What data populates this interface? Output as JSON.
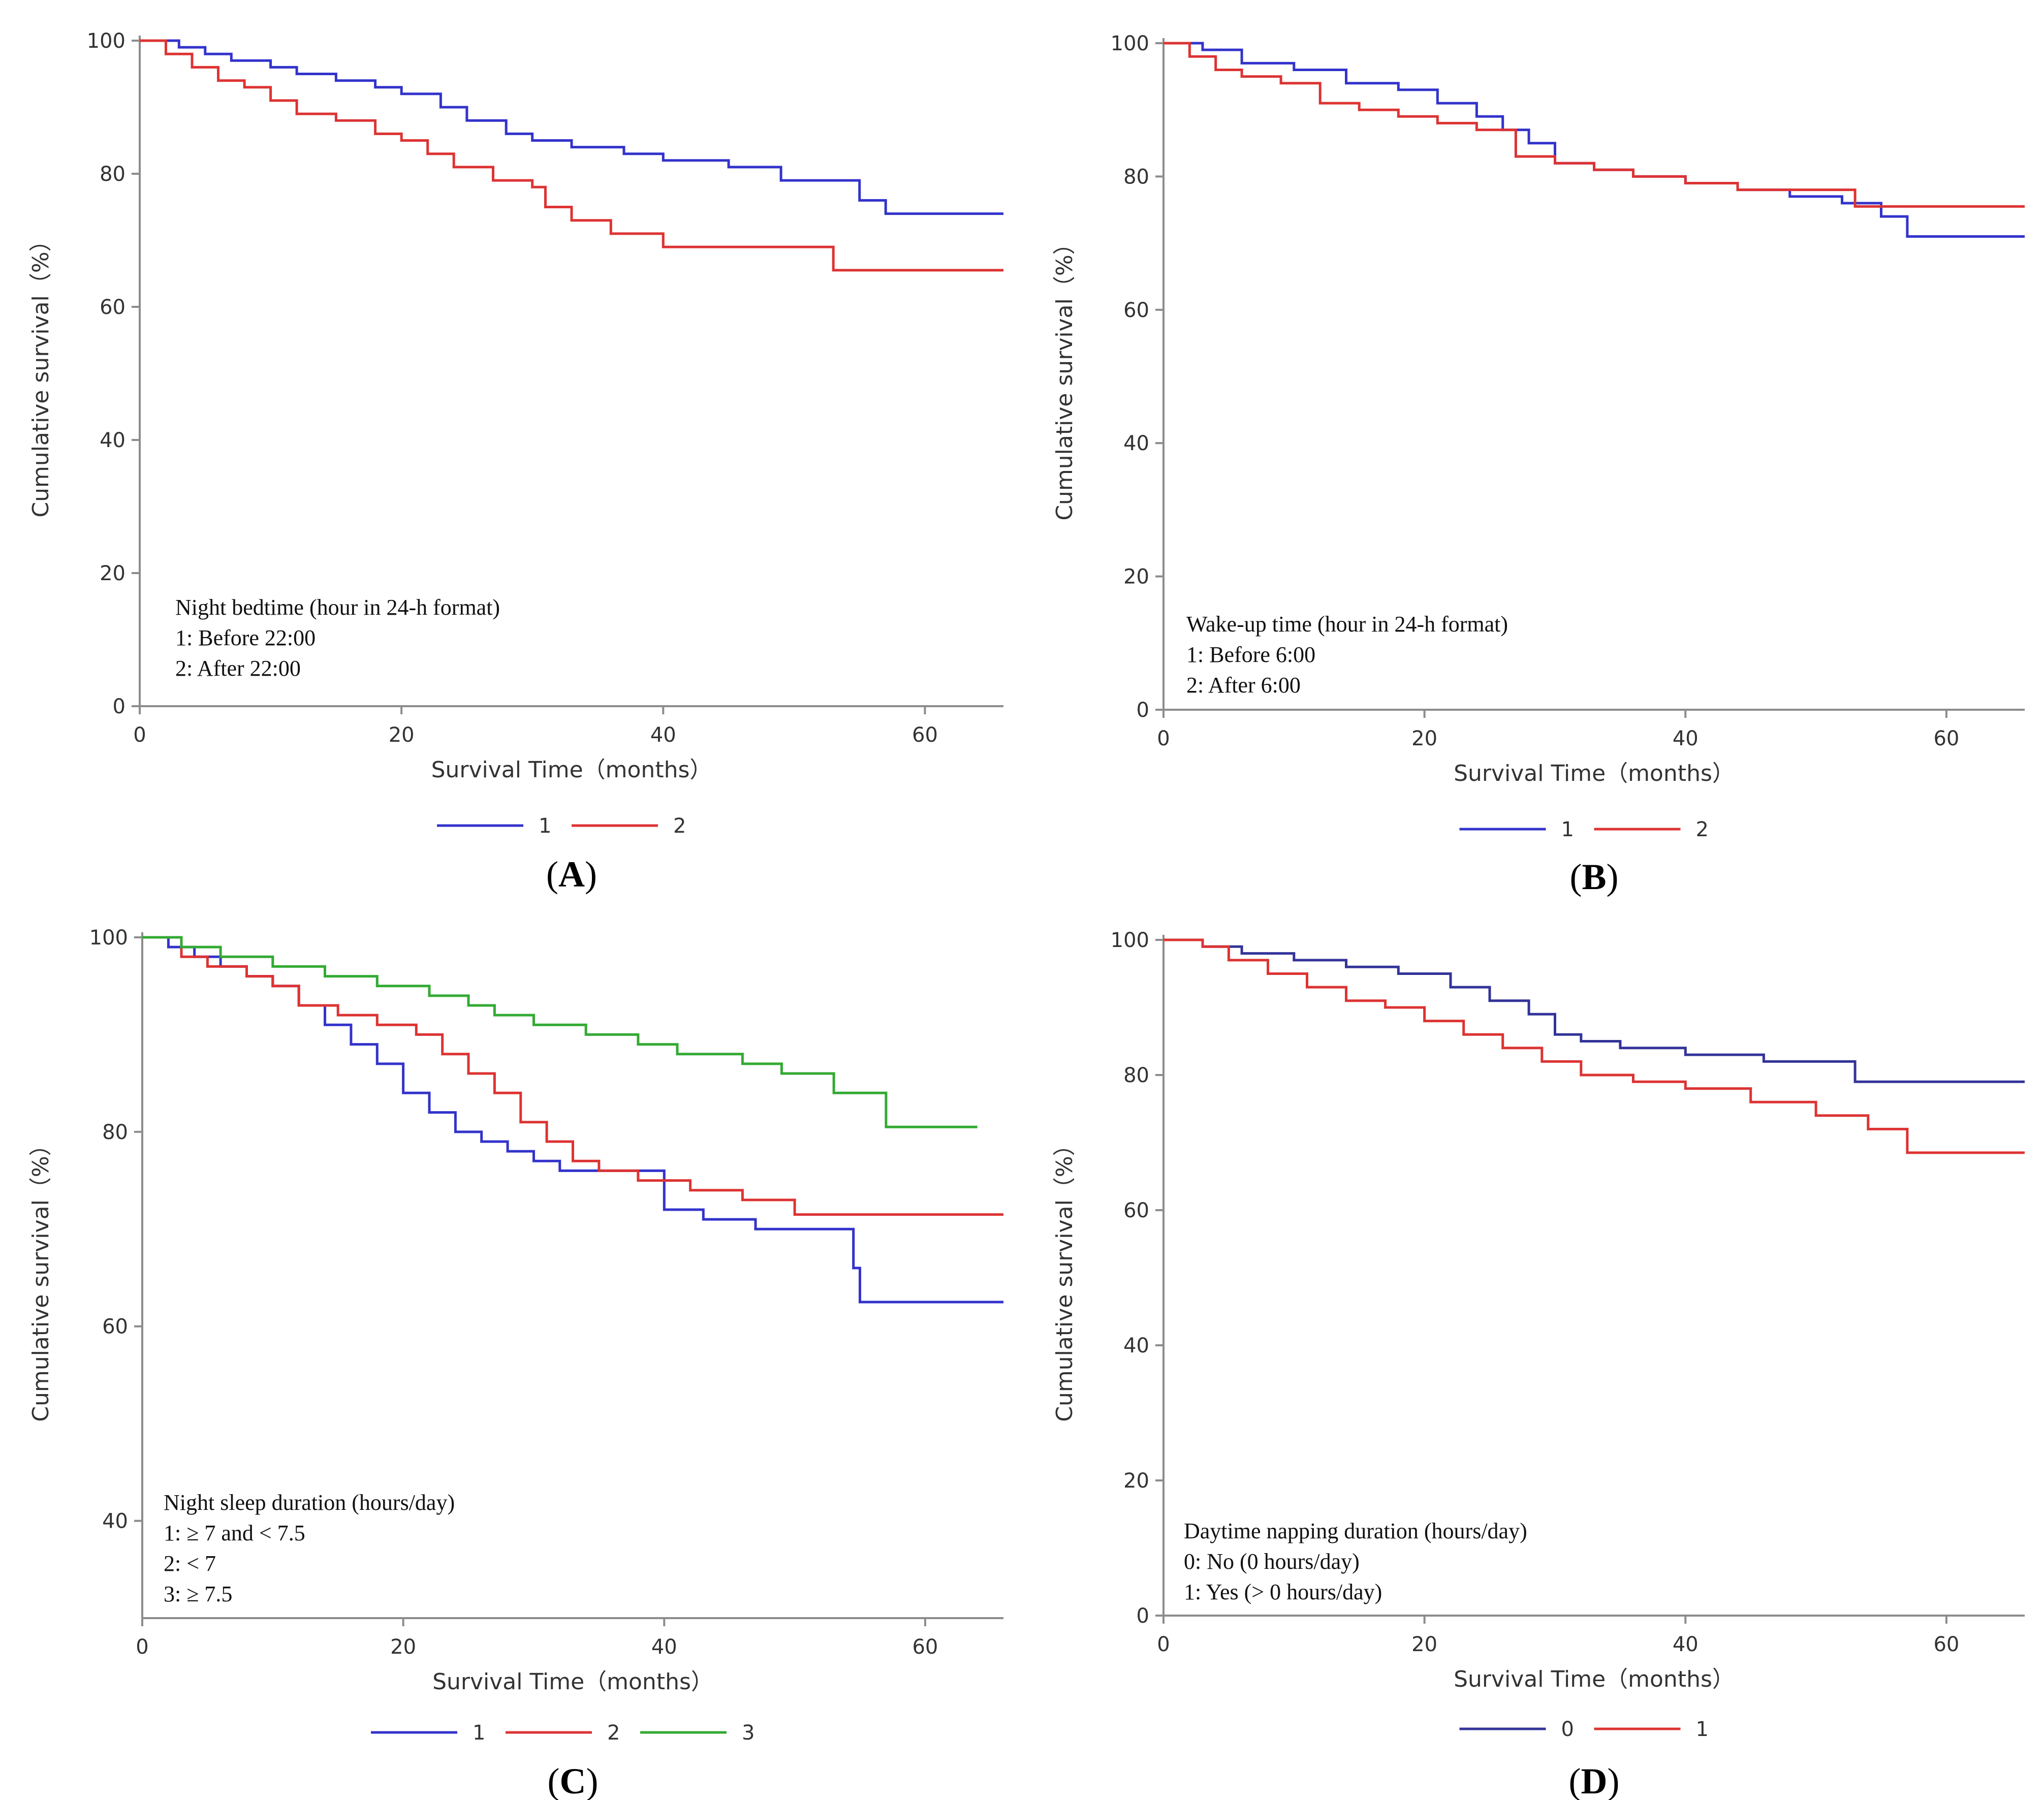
{
  "chart_data": [
    {
      "type": "line",
      "panel_label": "A",
      "xlabel": "Survival Time（months）",
      "ylabel": "Cumulative survival（%）",
      "xlim": [
        0,
        66
      ],
      "ylim": [
        0,
        100
      ],
      "xticks": [
        0,
        20,
        40,
        60
      ],
      "yticks": [
        0,
        20,
        40,
        60,
        80,
        100
      ],
      "annotation": {
        "title": "Night bedtime (hour in 24-h format)",
        "lines": [
          "1: Before 22:00",
          "2: After 22:00"
        ]
      },
      "series": [
        {
          "name": "1",
          "color": "#3333cc",
          "x": [
            0,
            3,
            5,
            7,
            10,
            12,
            15,
            18,
            20,
            23,
            25,
            28,
            30,
            33,
            37,
            40,
            45,
            49,
            55,
            57,
            66
          ],
          "y": [
            100,
            99,
            98,
            97,
            96,
            95,
            94,
            93,
            92,
            90,
            88,
            86,
            85,
            84,
            83,
            82,
            81,
            79,
            76,
            74,
            74
          ]
        },
        {
          "name": "2",
          "color": "#dd3333",
          "x": [
            0,
            2,
            4,
            6,
            8,
            10,
            12,
            15,
            18,
            20,
            22,
            24,
            27,
            30,
            31,
            33,
            36,
            40,
            45,
            50,
            53,
            66
          ],
          "y": [
            100,
            98,
            96,
            94,
            93,
            91,
            89,
            88,
            86,
            85,
            83,
            81,
            79,
            78,
            75,
            73,
            71,
            69,
            69,
            69,
            65.5,
            65.5
          ]
        }
      ]
    },
    {
      "type": "line",
      "panel_label": "B",
      "xlabel": "Survival Time（months）",
      "ylabel": "Cumulative survival（%）",
      "xlim": [
        0,
        66
      ],
      "ylim": [
        0,
        100
      ],
      "xticks": [
        0,
        20,
        40,
        60
      ],
      "yticks": [
        0,
        20,
        40,
        60,
        80,
        100
      ],
      "annotation": {
        "title": "Wake-up time (hour in 24-h format)",
        "lines": [
          "1: Before 6:00",
          "2: After 6:00"
        ]
      },
      "series": [
        {
          "name": "1",
          "color": "#3333cc",
          "x": [
            0,
            3,
            6,
            10,
            14,
            18,
            21,
            24,
            26,
            28,
            30,
            33,
            36,
            40,
            44,
            48,
            52,
            55,
            57,
            66
          ],
          "y": [
            100,
            99,
            97,
            96,
            94,
            93,
            91,
            89,
            87,
            85,
            82,
            81,
            80,
            79,
            78,
            77,
            76,
            74,
            71,
            71
          ]
        },
        {
          "name": "2",
          "color": "#dd3333",
          "x": [
            0,
            2,
            4,
            6,
            9,
            12,
            15,
            18,
            21,
            24,
            27,
            30,
            33,
            36,
            40,
            44,
            48,
            53,
            66
          ],
          "y": [
            100,
            98,
            96,
            95,
            94,
            91,
            90,
            89,
            88,
            87,
            83,
            82,
            81,
            80,
            79,
            78,
            78,
            75.5,
            75.5
          ]
        }
      ]
    },
    {
      "type": "line",
      "panel_label": "C",
      "xlabel": "Survival Time（months）",
      "ylabel": "Cumulative survival（%）",
      "xlim": [
        0,
        66
      ],
      "ylim": [
        30,
        100
      ],
      "xticks": [
        0,
        20,
        40,
        60
      ],
      "yticks": [
        40,
        60,
        80,
        100
      ],
      "annotation": {
        "title": "Night sleep duration (hours/day)",
        "lines": [
          "1: ≥ 7 and < 7.5",
          "2: < 7",
          "3: ≥ 7.5"
        ]
      },
      "series": [
        {
          "name": "1",
          "color": "#3333cc",
          "x": [
            0,
            2,
            4,
            6,
            8,
            10,
            12,
            14,
            16,
            18,
            20,
            22,
            24,
            26,
            28,
            30,
            32,
            36,
            40,
            43,
            47,
            50,
            54.5,
            55,
            66
          ],
          "y": [
            100,
            99,
            98,
            97,
            96,
            95,
            93,
            91,
            89,
            87,
            84,
            82,
            80,
            79,
            78,
            77,
            76,
            76,
            72,
            71,
            70,
            70,
            66,
            62.5,
            62.5
          ]
        },
        {
          "name": "2",
          "color": "#dd3333",
          "x": [
            0,
            3,
            5,
            8,
            10,
            12,
            15,
            18,
            21,
            23,
            25,
            27,
            29,
            31,
            33,
            35,
            38,
            42,
            46,
            50,
            66
          ],
          "y": [
            100,
            98,
            97,
            96,
            95,
            93,
            92,
            91,
            90,
            88,
            86,
            84,
            81,
            79,
            77,
            76,
            75,
            74,
            73,
            71.5,
            71.5
          ]
        },
        {
          "name": "3",
          "color": "#33aa33",
          "x": [
            0,
            3,
            6,
            10,
            14,
            18,
            22,
            25,
            27,
            30,
            34,
            38,
            41,
            46,
            49,
            53,
            57,
            64
          ],
          "y": [
            100,
            99,
            98,
            97,
            96,
            95,
            94,
            93,
            92,
            91,
            90,
            89,
            88,
            87,
            86,
            84,
            80.5,
            80.5
          ]
        }
      ]
    },
    {
      "type": "line",
      "panel_label": "D",
      "xlabel": "Survival Time（months）",
      "ylabel": "Cumulative survival（%）",
      "xlim": [
        0,
        66
      ],
      "ylim": [
        0,
        100
      ],
      "xticks": [
        0,
        20,
        40,
        60
      ],
      "yticks": [
        0,
        20,
        40,
        60,
        80,
        100
      ],
      "annotation": {
        "title": "Daytime napping duration (hours/day)",
        "lines": [
          "0: No (0 hours/day)",
          "1: Yes (> 0 hours/day)"
        ]
      },
      "series": [
        {
          "name": "0",
          "color": "#333399",
          "x": [
            0,
            3,
            6,
            10,
            14,
            18,
            22,
            25,
            28,
            30,
            32,
            35,
            40,
            46,
            53,
            66
          ],
          "y": [
            100,
            99,
            98,
            97,
            96,
            95,
            93,
            91,
            89,
            86,
            85,
            84,
            83,
            82,
            79,
            79
          ]
        },
        {
          "name": "1",
          "color": "#dd3333",
          "x": [
            0,
            3,
            5,
            8,
            11,
            14,
            17,
            20,
            23,
            26,
            29,
            32,
            36,
            40,
            45,
            50,
            54,
            57,
            66
          ],
          "y": [
            100,
            99,
            97,
            95,
            93,
            91,
            90,
            88,
            86,
            84,
            82,
            80,
            79,
            78,
            76,
            74,
            72,
            68.5,
            68.5
          ]
        }
      ]
    }
  ]
}
